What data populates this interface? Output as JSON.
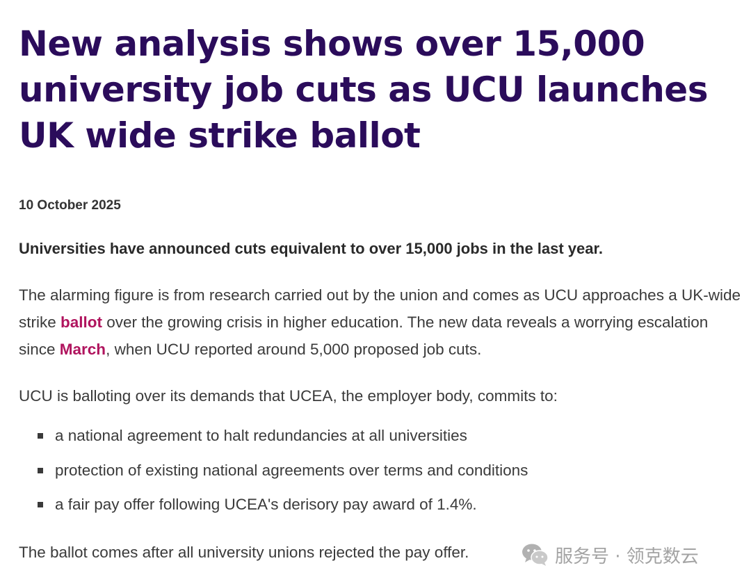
{
  "article": {
    "headline": "New analysis shows over 15,000 university job cuts as UCU launches UK wide strike ballot",
    "date": "10 October 2025",
    "lead": "Universities have announced cuts equivalent to over 15,000 jobs in the last year.",
    "paragraph1": {
      "part1": "The alarming figure is from research carried out by the union and comes as UCU approaches a UK-wide strike ",
      "link1": "ballot",
      "part2": " over the growing crisis in higher education. The new data reveals a worrying escalation since ",
      "link2": "March",
      "part3": ", when UCU reported around 5,000 proposed job cuts."
    },
    "paragraph2": "UCU is balloting over its demands that UCEA, the employer body, commits to:",
    "demands": [
      "a national agreement to halt redundancies at all universities",
      "protection of existing national agreements over terms and conditions",
      "a fair pay offer following UCEA's derisory pay award of 1.4%."
    ],
    "paragraph3": "The ballot comes after all university unions rejected the pay offer."
  },
  "watermark": {
    "icon": "wechat-icon",
    "text": "服务号 · 领克数云"
  },
  "colors": {
    "headline": "#2b0c5b",
    "link": "#b0145e",
    "body_text": "#3a3a3a"
  }
}
